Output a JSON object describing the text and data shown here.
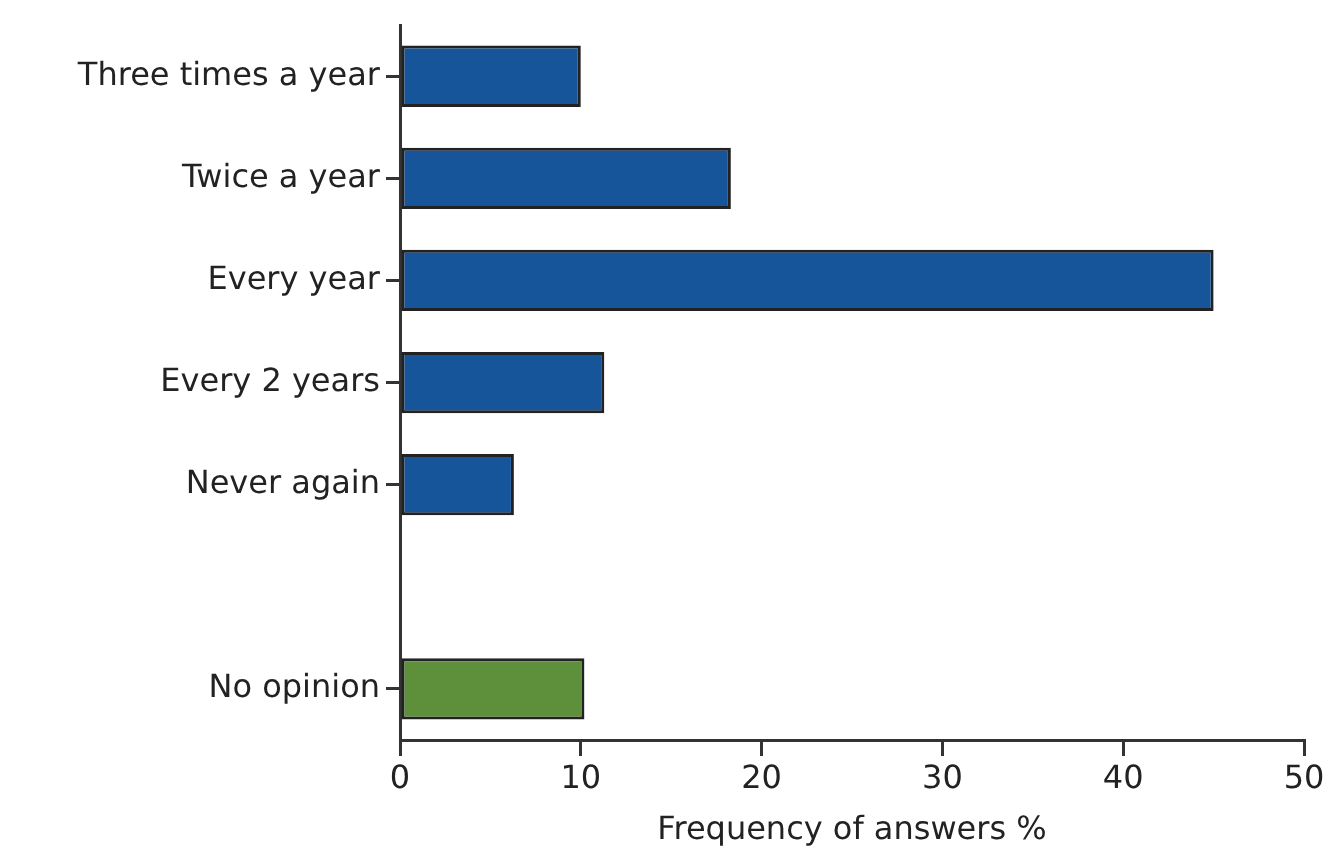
{
  "chart_data": {
    "type": "bar",
    "orientation": "horizontal",
    "xlabel": "Frequency of answers %",
    "categories": [
      "Three times a year",
      "Twice a year",
      "Every year",
      "Every 2 years",
      "Never again",
      null,
      "No opinion"
    ],
    "values": [
      10,
      18.3,
      45,
      11.3,
      6.3,
      null,
      10.2
    ],
    "colors": [
      "#17559b",
      "#17559b",
      "#17559b",
      "#17559b",
      "#17559b",
      "#17559b",
      "#5e8f3a"
    ],
    "xlim": [
      0,
      50
    ],
    "xticks": [
      0,
      10,
      20,
      30,
      40,
      50
    ],
    "grid": false,
    "legend": false
  }
}
